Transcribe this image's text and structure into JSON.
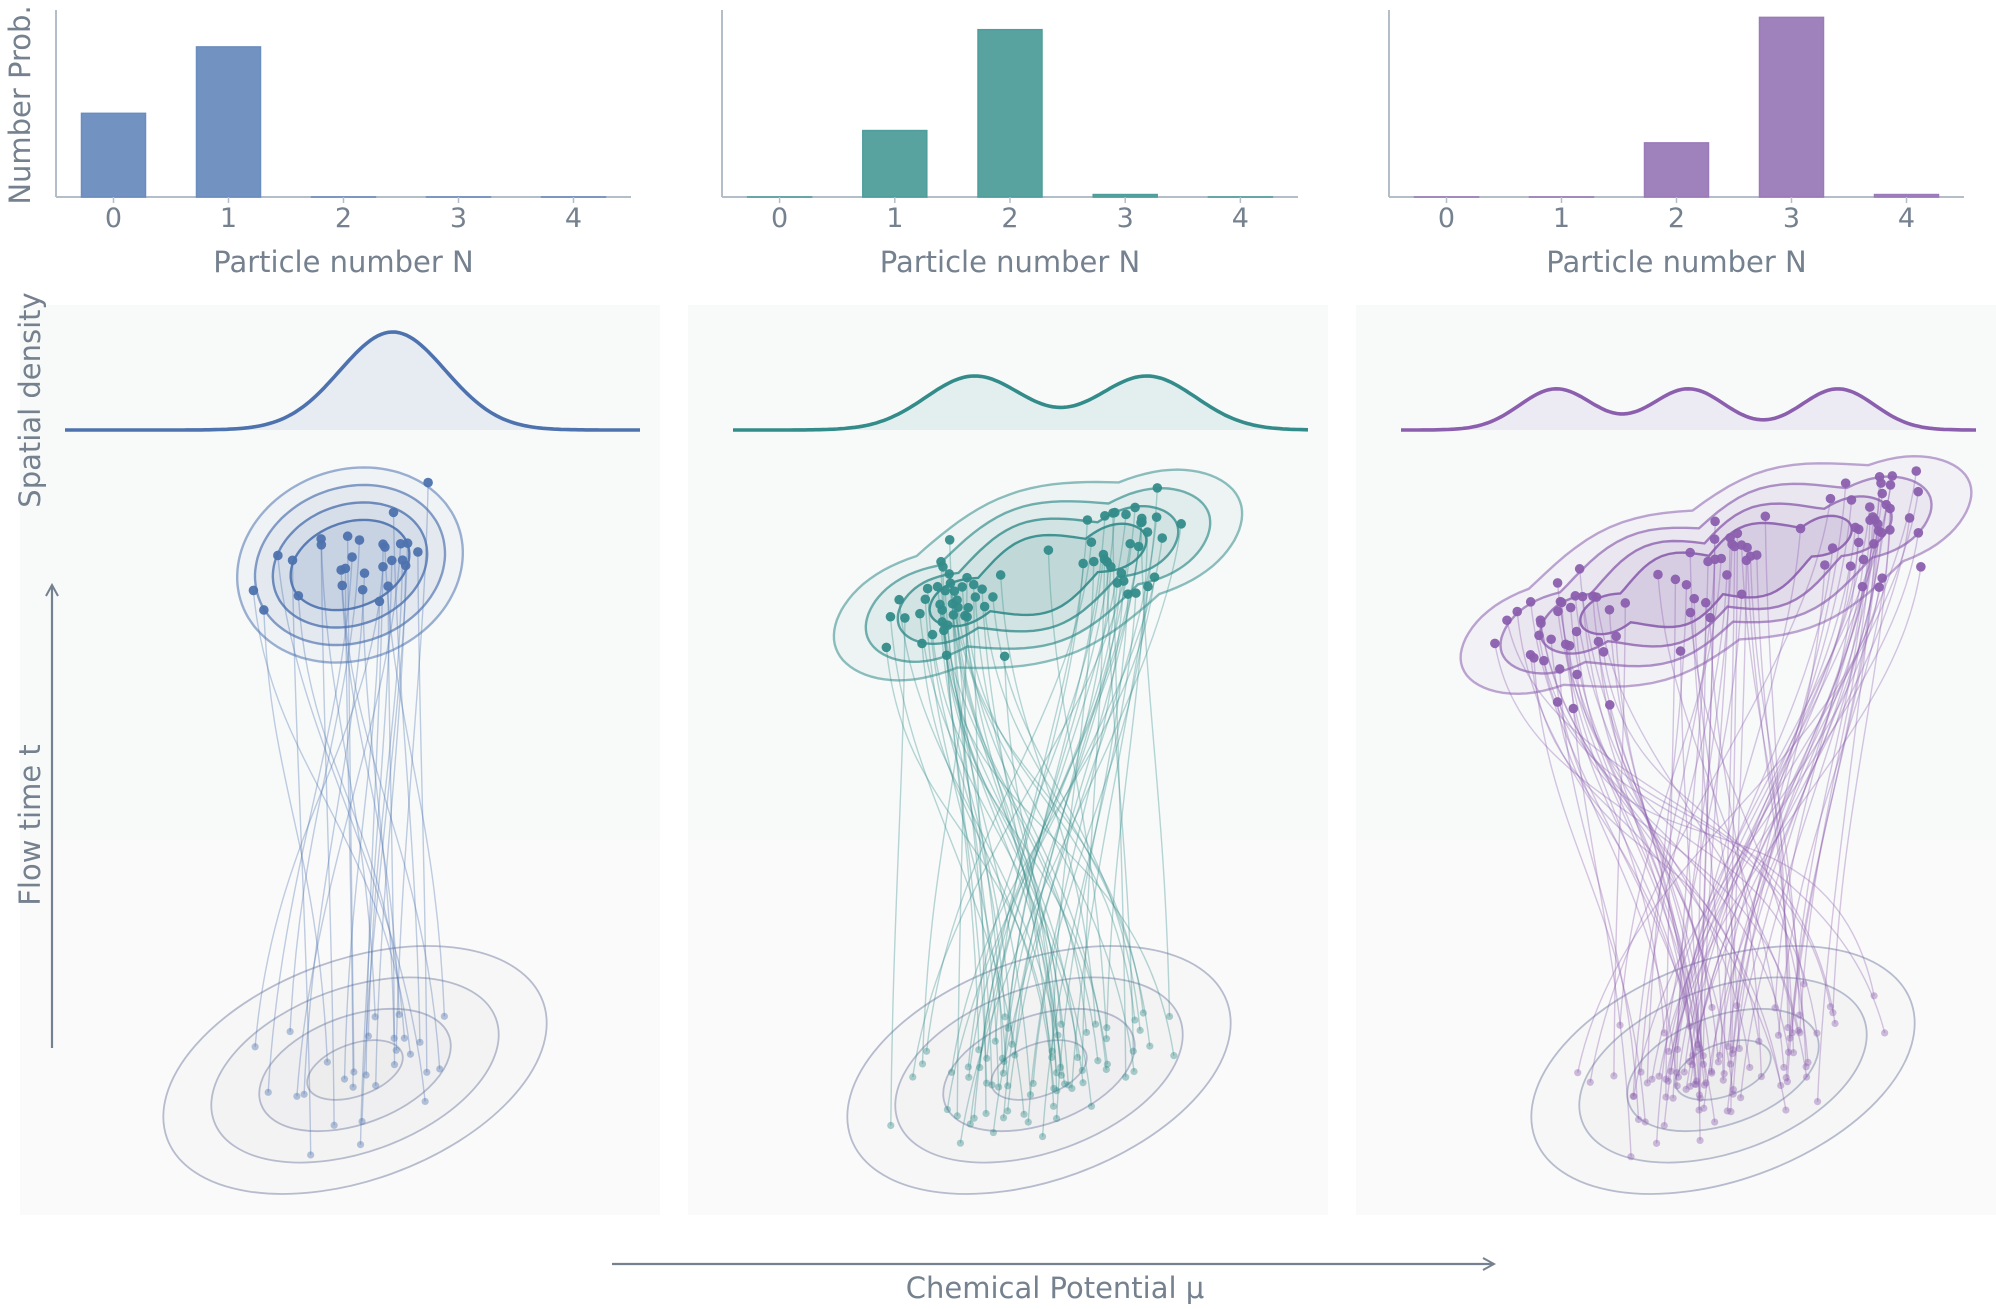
{
  "chart_data": [
    {
      "type": "bar",
      "title": "",
      "xlabel": "Particle number N",
      "ylabel": "Number Prob.",
      "categories": [
        "0",
        "1",
        "2",
        "3",
        "4"
      ],
      "values": [
        0.34,
        0.61,
        0.0,
        0.0,
        0.0
      ],
      "color": "#6a8cbf"
    },
    {
      "type": "bar",
      "title": "",
      "xlabel": "Particle number N",
      "ylabel": "",
      "categories": [
        "0",
        "1",
        "2",
        "3",
        "4"
      ],
      "values": [
        0.0,
        0.27,
        0.68,
        0.01,
        0.0
      ],
      "color": "#4f9e9b"
    },
    {
      "type": "bar",
      "title": "",
      "xlabel": "Particle number N",
      "ylabel": "",
      "categories": [
        "0",
        "1",
        "2",
        "3",
        "4"
      ],
      "values": [
        0.0,
        0.0,
        0.22,
        0.73,
        0.01
      ],
      "color": "#9a7ab8"
    }
  ],
  "lower_panels": {
    "ylabel_density": "Spatial density",
    "ylabel_flow": "Flow time t",
    "xlabel": "Chemical Potential μ",
    "panels": [
      {
        "peaks": 1,
        "color": "#4e72ae"
      },
      {
        "peaks": 2,
        "color": "#338c8a"
      },
      {
        "peaks": 3,
        "color": "#8b5fae"
      }
    ]
  },
  "colors": {
    "axis": "#b4bec8",
    "text": "#75818f",
    "base_contour": "#a5adc2"
  }
}
